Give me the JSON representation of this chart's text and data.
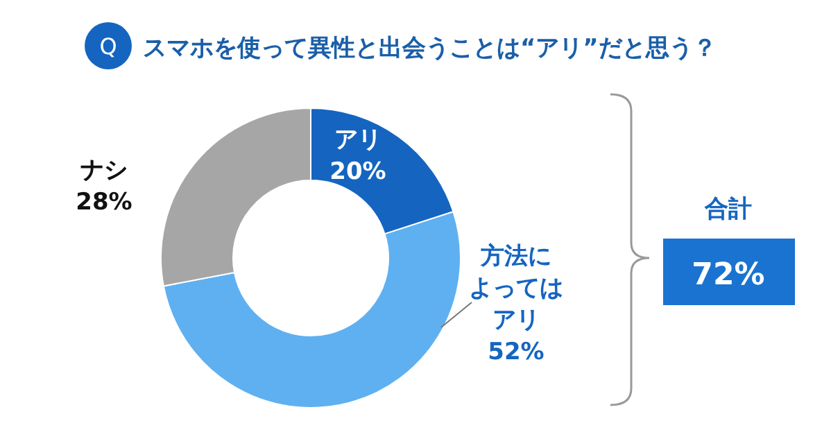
{
  "chart_data": {
    "type": "donut",
    "title": "スマホを使って異性と出会うことは“アリ”だと思う？",
    "categories": [
      "アリ",
      "方法によってはアリ",
      "ナシ"
    ],
    "values": [
      20,
      52,
      28
    ],
    "colors": [
      "#1565c0",
      "#5fb0f0",
      "#a6a6a6"
    ],
    "value_labels": [
      "20%",
      "52%",
      "28%"
    ],
    "annotations": [
      "Q",
      "合計",
      "72%"
    ]
  }
}
